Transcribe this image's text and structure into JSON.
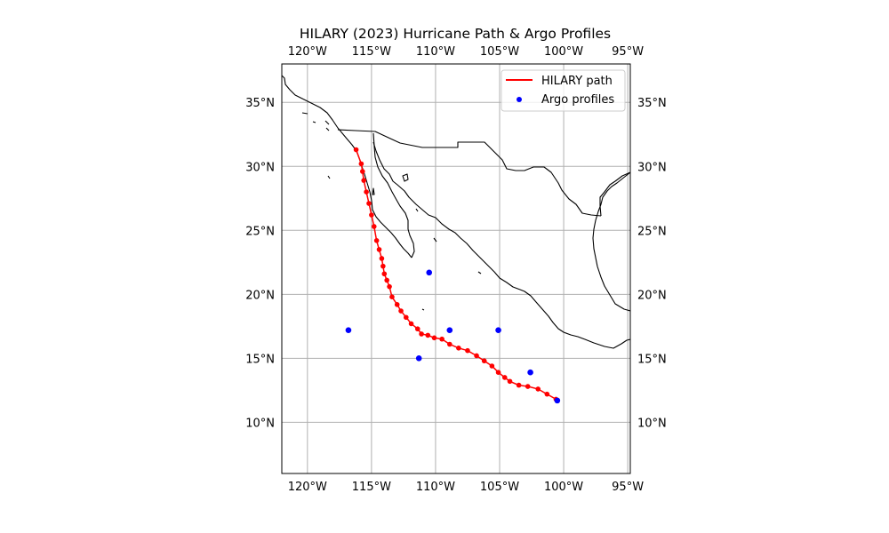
{
  "chart_data": {
    "type": "map",
    "title": "HILARY (2023) Hurricane Path & Argo Profiles",
    "projection": "PlateCarree",
    "xlim": [
      -122,
      -94.8
    ],
    "ylim": [
      6,
      38
    ],
    "grid": true,
    "legend_position": "top-right",
    "x_ticks": [
      {
        "value": -120,
        "label": "120°W"
      },
      {
        "value": -115,
        "label": "115°W"
      },
      {
        "value": -110,
        "label": "110°W"
      },
      {
        "value": -105,
        "label": "105°W"
      },
      {
        "value": -100,
        "label": "100°W"
      },
      {
        "value": -95,
        "label": "95°W"
      }
    ],
    "y_ticks": [
      {
        "value": 35,
        "label": "35°N"
      },
      {
        "value": 30,
        "label": "30°N"
      },
      {
        "value": 25,
        "label": "25°N"
      },
      {
        "value": 20,
        "label": "20°N"
      },
      {
        "value": 15,
        "label": "15°N"
      },
      {
        "value": 10,
        "label": "10°N"
      }
    ],
    "series": [
      {
        "name": "HILARY path",
        "type": "line",
        "color": "#ff0000",
        "points": [
          [
            -100.6,
            11.8
          ],
          [
            -101.3,
            12.2
          ],
          [
            -102.0,
            12.6
          ],
          [
            -102.8,
            12.8
          ],
          [
            -103.5,
            12.9
          ],
          [
            -104.2,
            13.2
          ],
          [
            -104.6,
            13.5
          ],
          [
            -105.1,
            13.9
          ],
          [
            -105.6,
            14.4
          ],
          [
            -106.2,
            14.8
          ],
          [
            -106.8,
            15.2
          ],
          [
            -107.5,
            15.6
          ],
          [
            -108.2,
            15.8
          ],
          [
            -108.9,
            16.1
          ],
          [
            -109.5,
            16.5
          ],
          [
            -110.1,
            16.6
          ],
          [
            -110.6,
            16.8
          ],
          [
            -111.1,
            16.9
          ],
          [
            -111.4,
            17.3
          ],
          [
            -111.9,
            17.7
          ],
          [
            -112.3,
            18.2
          ],
          [
            -112.7,
            18.7
          ],
          [
            -113.0,
            19.2
          ],
          [
            -113.4,
            19.8
          ],
          [
            -113.6,
            20.6
          ],
          [
            -113.8,
            21.1
          ],
          [
            -114.0,
            21.6
          ],
          [
            -114.1,
            22.2
          ],
          [
            -114.2,
            22.8
          ],
          [
            -114.4,
            23.5
          ],
          [
            -114.6,
            24.2
          ],
          [
            -114.8,
            25.3
          ],
          [
            -115.0,
            26.2
          ],
          [
            -115.2,
            27.1
          ],
          [
            -115.4,
            28.0
          ],
          [
            -115.6,
            28.9
          ],
          [
            -115.7,
            29.6
          ],
          [
            -115.8,
            30.2
          ],
          [
            -116.2,
            31.3
          ]
        ]
      },
      {
        "name": "Argo profiles",
        "type": "scatter",
        "color": "#0000ff",
        "points": [
          [
            -110.5,
            21.7
          ],
          [
            -116.8,
            17.2
          ],
          [
            -108.9,
            17.2
          ],
          [
            -105.1,
            17.2
          ],
          [
            -111.3,
            15.0
          ],
          [
            -102.6,
            13.9
          ],
          [
            -100.5,
            11.7
          ]
        ]
      }
    ]
  },
  "basemap": {
    "coastline_color": "#000000",
    "border_color": "#000000",
    "grid_color": "#b0b0b0"
  }
}
